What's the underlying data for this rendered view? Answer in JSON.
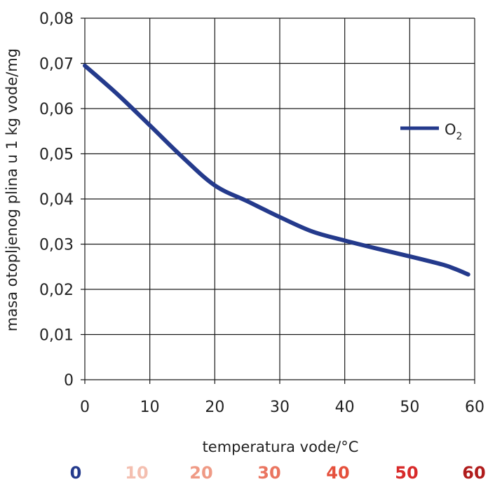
{
  "chart_data": {
    "type": "line",
    "xlabel": "temperatura vode/°C",
    "ylabel": "masa otopljenog plina u 1 kg vode/mg",
    "xlim": [
      0,
      60
    ],
    "ylim": [
      0,
      0.08
    ],
    "grid": true,
    "legend_position": "right",
    "x_ticks": [
      "0",
      "10",
      "20",
      "30",
      "40",
      "50",
      "60"
    ],
    "y_ticks": [
      "0",
      "0,01",
      "0,02",
      "0,03",
      "0,04",
      "0,05",
      "0,06",
      "0,07",
      "0,08"
    ],
    "series": [
      {
        "name_base": "O",
        "name_subscript": "2",
        "color": "#243a8c",
        "x": [
          0,
          5,
          10,
          15,
          20,
          25,
          30,
          35,
          40,
          45,
          50,
          55,
          57,
          59
        ],
        "y": [
          0.0695,
          0.0632,
          0.0563,
          0.0493,
          0.043,
          0.0395,
          0.036,
          0.0328,
          0.0308,
          0.029,
          0.0273,
          0.0255,
          0.0245,
          0.0233
        ]
      }
    ],
    "temperature_scale": [
      {
        "label": "0",
        "color": "#243a8c"
      },
      {
        "label": "10",
        "color": "#f4bfb0"
      },
      {
        "label": "20",
        "color": "#ef9a85"
      },
      {
        "label": "30",
        "color": "#ea7560"
      },
      {
        "label": "40",
        "color": "#e5503c"
      },
      {
        "label": "50",
        "color": "#d82a2a"
      },
      {
        "label": "60",
        "color": "#b01c1c"
      }
    ]
  }
}
